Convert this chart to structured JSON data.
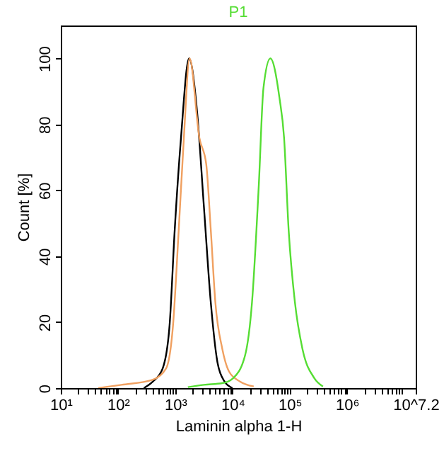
{
  "chart_data": {
    "type": "line",
    "xlabel": "Laminin alpha 1-H",
    "ylabel": "Count [%]",
    "log": "x",
    "xlim": [
      10,
      15848932
    ],
    "ylim": [
      0,
      110
    ],
    "xticks": [
      {
        "value": 10,
        "label": "10¹"
      },
      {
        "value": 100,
        "label": "10²"
      },
      {
        "value": 1000,
        "label": "10³"
      },
      {
        "value": 10000,
        "label": "10⁴"
      },
      {
        "value": 100000,
        "label": "10⁵"
      },
      {
        "value": 1000000,
        "label": "10⁶"
      },
      {
        "value": 15848932,
        "label": "10^7.2"
      },
      {
        "value": 20,
        "label": null
      },
      {
        "value": 30,
        "label": null
      },
      {
        "value": 40,
        "label": null
      },
      {
        "value": 50,
        "label": null
      },
      {
        "value": 60,
        "label": null
      },
      {
        "value": 70,
        "label": null
      },
      {
        "value": 80,
        "label": null
      },
      {
        "value": 90,
        "label": null
      },
      {
        "value": 200,
        "label": null
      },
      {
        "value": 300,
        "label": null
      },
      {
        "value": 400,
        "label": null
      },
      {
        "value": 500,
        "label": null
      },
      {
        "value": 600,
        "label": null
      },
      {
        "value": 700,
        "label": null
      },
      {
        "value": 800,
        "label": null
      },
      {
        "value": 900,
        "label": null
      },
      {
        "value": 2000,
        "label": null
      },
      {
        "value": 3000,
        "label": null
      },
      {
        "value": 4000,
        "label": null
      },
      {
        "value": 5000,
        "label": null
      },
      {
        "value": 6000,
        "label": null
      },
      {
        "value": 7000,
        "label": null
      },
      {
        "value": 8000,
        "label": null
      },
      {
        "value": 9000,
        "label": null
      },
      {
        "value": 20000,
        "label": null
      },
      {
        "value": 30000,
        "label": null
      },
      {
        "value": 40000,
        "label": null
      },
      {
        "value": 50000,
        "label": null
      },
      {
        "value": 60000,
        "label": null
      },
      {
        "value": 70000,
        "label": null
      },
      {
        "value": 80000,
        "label": null
      },
      {
        "value": 90000,
        "label": null
      },
      {
        "value": 200000,
        "label": null
      },
      {
        "value": 300000,
        "label": null
      },
      {
        "value": 400000,
        "label": null
      },
      {
        "value": 500000,
        "label": null
      },
      {
        "value": 600000,
        "label": null
      },
      {
        "value": 700000,
        "label": null
      },
      {
        "value": 800000,
        "label": null
      },
      {
        "value": 900000,
        "label": null
      },
      {
        "value": 2000000,
        "label": null
      },
      {
        "value": 3000000,
        "label": null
      },
      {
        "value": 4000000,
        "label": null
      },
      {
        "value": 5000000,
        "label": null
      },
      {
        "value": 6000000,
        "label": null
      },
      {
        "value": 7000000,
        "label": null
      },
      {
        "value": 8000000,
        "label": null
      },
      {
        "value": 9000000,
        "label": null
      }
    ],
    "yticks": [
      0,
      20,
      40,
      60,
      80,
      100
    ],
    "grid": false,
    "marker": "none",
    "line_style": "solid",
    "series": [
      {
        "color": "#000000",
        "x": [
          282,
          407,
          603,
          794,
          977,
          1259,
          1738,
          2399,
          3162,
          4169,
          5495,
          7244,
          10000
        ],
        "values": [
          0,
          2,
          6,
          19,
          48,
          76,
          100,
          84,
          55,
          26,
          7.5,
          2,
          0
        ]
      },
      {
        "color": "#f0a060",
        "x": [
          45,
          115,
          398,
          692,
          912,
          1148,
          1413,
          1778,
          2630,
          3467,
          4169,
          5012,
          6607,
          8710,
          13490,
          23440
        ],
        "values": [
          0,
          1,
          2.5,
          6,
          19,
          48,
          76,
          100,
          76,
          68,
          48,
          26,
          12,
          5,
          2,
          0.5
        ]
      },
      {
        "name": "P1",
        "color": "#55dd33",
        "x": [
          1660,
          3162,
          6607,
          10230,
          16600,
          21880,
          28840,
          34670,
          45710,
          66070,
          79430,
          95500,
          123000,
          166000,
          269000,
          380000
        ],
        "values": [
          0.3,
          1,
          1.5,
          3,
          10,
          26,
          62,
          91,
          100,
          88,
          76,
          48,
          26,
          12,
          3,
          0.5
        ]
      }
    ]
  }
}
